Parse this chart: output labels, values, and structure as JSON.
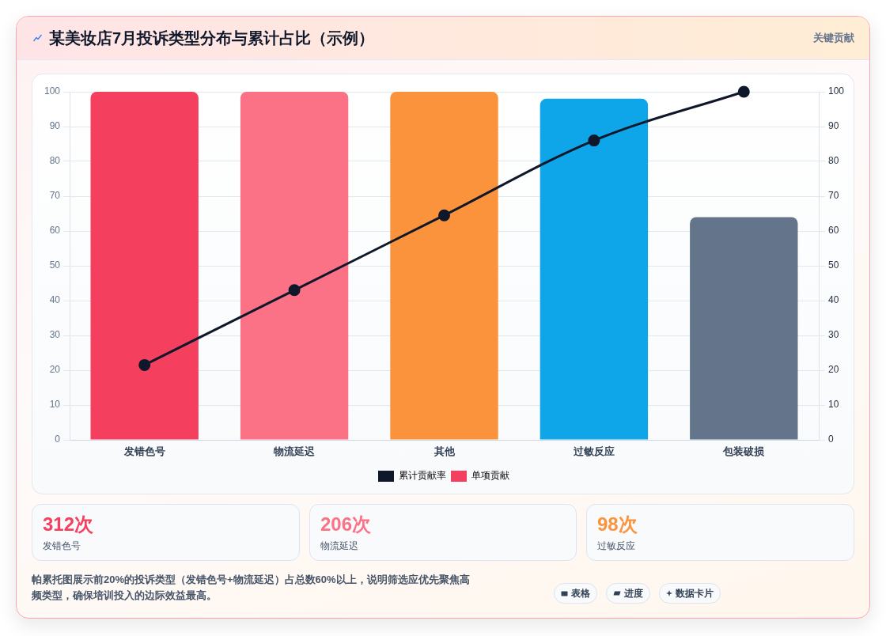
{
  "chart_data": [
    {
      "type": "bar",
      "title": "某美妆店7月投诉类型分布与累计占比（示例）",
      "categories": [
        "发错色号",
        "物流延迟",
        "其他",
        "过敏反应",
        "包装破损"
      ],
      "series": [
        {
          "name": "累计贡献率",
          "type": "line",
          "axis": "y2",
          "color": "#0f172a",
          "values": [
            21.5,
            43,
            64.5,
            86,
            100
          ]
        },
        {
          "name": "单项贡献",
          "color": "#f43f5e",
          "colors": [
            "#f43f5e",
            "#fb7185",
            "#fb923c",
            "#0ea5e9",
            "#64748b"
          ],
          "values": [
            100,
            100,
            100,
            98,
            64
          ]
        }
      ],
      "ylim": [
        0,
        100
      ],
      "yticks": [
        0,
        10,
        20,
        30,
        40,
        50,
        60,
        70,
        80,
        90,
        100
      ],
      "y2lim": [
        0,
        100
      ],
      "y2ticks": [
        0,
        10,
        20,
        30,
        40,
        50,
        60,
        70,
        80,
        90,
        100
      ],
      "grid": "y",
      "legend": "bottom",
      "marker": "circle",
      "line_style": "solid",
      "annotations": [
        "关键贡献",
        "帕累托图展示前20%的投诉类型（发错色号+物流延迟）占总数60%以上，说明筛选应优先聚焦高频类型，确保培训投入的边际效益最高。",
        "表格",
        "进度",
        "数据卡片"
      ]
    },
    {
      "type": "other",
      "title": "312次",
      "subtitle": "发错色号",
      "color": "#f43f5e"
    },
    {
      "type": "other",
      "title": "206次",
      "subtitle": "物流延迟",
      "color": "#fb7185"
    },
    {
      "type": "other",
      "title": "98次",
      "subtitle": "过敏反应",
      "color": "#fb923c"
    }
  ]
}
